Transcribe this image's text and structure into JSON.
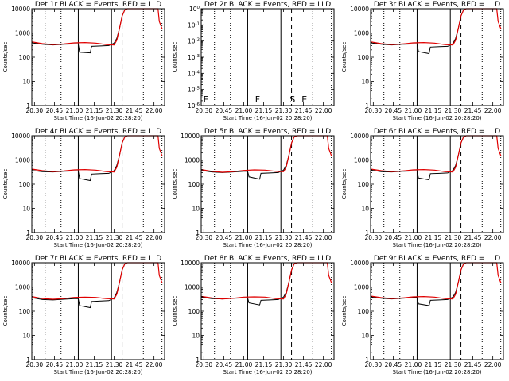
{
  "figure": {
    "rows": 3,
    "cols": 3
  },
  "colors": {
    "events": "#000000",
    "lld": "#e00000"
  },
  "chart_data": [
    {
      "type": "line",
      "title": "Det 1r BLACK = Events, RED = LLD",
      "xlabel": "Start Time (16-Jun-02 20:28:20)",
      "ylabel": "Counts/sec",
      "x_ticks": [
        "20:30",
        "20:45",
        "21:00",
        "21:15",
        "21:30",
        "21:45",
        "22:00"
      ],
      "yscale": "log",
      "ylim": [
        1,
        10000
      ],
      "y_ticks": [
        "1",
        "10",
        "100",
        "1000",
        "10000"
      ],
      "vlines_dotted": [
        "20:38",
        "20:50",
        "21:52",
        "22:06"
      ],
      "vlines_solid": [
        "21:03",
        "21:28"
      ],
      "vlines_dashed": [
        "21:36"
      ],
      "markers": [],
      "series": [
        {
          "name": "Events",
          "color": "#000000",
          "x": [
            "20:28",
            "20:36",
            "20:44",
            "20:52",
            "21:00",
            "21:03",
            "21:04",
            "21:12",
            "21:13",
            "21:20",
            "21:26",
            "21:30",
            "21:32",
            "21:34",
            "21:36",
            "21:38",
            "21:40"
          ],
          "y": [
            390,
            340,
            320,
            340,
            350,
            350,
            160,
            150,
            280,
            290,
            300,
            380,
            600,
            1500,
            5000,
            9000,
            10000
          ]
        },
        {
          "name": "LLD",
          "color": "#e00000",
          "x": [
            "20:28",
            "20:36",
            "20:44",
            "20:52",
            "21:00",
            "21:08",
            "21:16",
            "21:24",
            "21:30",
            "21:32",
            "21:34",
            "21:36",
            "21:38",
            "21:40",
            "22:03",
            "22:04",
            "22:06"
          ],
          "y": [
            430,
            360,
            330,
            350,
            390,
            400,
            380,
            330,
            320,
            500,
            1500,
            5000,
            9000,
            10000,
            10000,
            3000,
            1500
          ]
        }
      ]
    },
    {
      "type": "line",
      "title": "Det 2r BLACK = Events, RED = LLD",
      "xlabel": "Start Time (16-Jun-02 20:28:20)",
      "ylabel": "Counts/sec",
      "x_ticks": [
        "20:30",
        "20:45",
        "21:00",
        "21:15",
        "21:30",
        "21:45",
        "22:00"
      ],
      "yscale": "log",
      "ylim": [
        1e-06,
        1
      ],
      "y_tick_base": "10",
      "y_tick_exps": [
        "-6",
        "-5",
        "-4",
        "-3",
        "-2",
        "-1",
        "0"
      ],
      "vlines_dotted": [
        "20:38",
        "20:50",
        "21:52",
        "22:06"
      ],
      "vlines_solid": [
        "21:03",
        "21:28"
      ],
      "vlines_dashed": [
        "21:36"
      ],
      "markers": [
        {
          "x": "20:29",
          "label": "E"
        },
        {
          "x": "21:08",
          "label": "F"
        },
        {
          "x": "21:34",
          "label": "S"
        },
        {
          "x": "21:43",
          "label": "E"
        }
      ],
      "series": []
    },
    {
      "type": "line",
      "title": "Det 3r BLACK = Events, RED = LLD",
      "xlabel": "Start Time (16-Jun-02 20:28:20)",
      "ylabel": "Counts/sec",
      "x_ticks": [
        "20:30",
        "20:45",
        "21:00",
        "21:15",
        "21:30",
        "21:45",
        "22:00"
      ],
      "yscale": "log",
      "ylim": [
        1,
        10000
      ],
      "y_ticks": [
        "1",
        "10",
        "100",
        "1000",
        "10000"
      ],
      "vlines_dotted": [
        "20:38",
        "20:50",
        "21:52",
        "22:06"
      ],
      "vlines_solid": [
        "21:03",
        "21:28"
      ],
      "vlines_dashed": [
        "21:36"
      ],
      "markers": [],
      "series": [
        {
          "name": "Events",
          "color": "#000000",
          "x": [
            "20:28",
            "20:36",
            "20:44",
            "20:52",
            "21:00",
            "21:03",
            "21:04",
            "21:12",
            "21:13",
            "21:20",
            "21:26",
            "21:30",
            "21:32",
            "21:34",
            "21:36",
            "21:38",
            "21:40"
          ],
          "y": [
            390,
            340,
            320,
            340,
            350,
            350,
            170,
            140,
            260,
            270,
            280,
            360,
            600,
            1500,
            5000,
            9000,
            10000
          ]
        },
        {
          "name": "LLD",
          "color": "#e00000",
          "x": [
            "20:28",
            "20:36",
            "20:44",
            "20:52",
            "21:00",
            "21:08",
            "21:16",
            "21:24",
            "21:30",
            "21:32",
            "21:34",
            "21:36",
            "21:38",
            "21:40",
            "22:03",
            "22:04",
            "22:06"
          ],
          "y": [
            430,
            360,
            330,
            350,
            390,
            400,
            380,
            330,
            320,
            500,
            1500,
            5000,
            9000,
            10000,
            10000,
            3000,
            1500
          ]
        }
      ]
    },
    {
      "type": "line",
      "title": "Det 4r BLACK = Events, RED = LLD",
      "xlabel": "Start Time (16-Jun-02 20:28:20)",
      "ylabel": "Counts/sec",
      "x_ticks": [
        "20:30",
        "20:45",
        "21:00",
        "21:15",
        "21:30",
        "21:45",
        "22:00"
      ],
      "yscale": "log",
      "ylim": [
        1,
        10000
      ],
      "y_ticks": [
        "1",
        "10",
        "100",
        "1000",
        "10000"
      ],
      "vlines_dotted": [
        "20:38",
        "20:50",
        "21:52",
        "22:06"
      ],
      "vlines_solid": [
        "21:03",
        "21:28"
      ],
      "vlines_dashed": [
        "21:36"
      ],
      "markers": [],
      "series": [
        {
          "name": "Events",
          "color": "#000000",
          "x": [
            "20:28",
            "20:36",
            "20:44",
            "20:52",
            "21:00",
            "21:03",
            "21:04",
            "21:12",
            "21:13",
            "21:20",
            "21:26",
            "21:30",
            "21:32",
            "21:34",
            "21:36",
            "21:38",
            "21:40"
          ],
          "y": [
            370,
            330,
            320,
            340,
            350,
            350,
            170,
            140,
            260,
            270,
            280,
            360,
            600,
            1500,
            5000,
            9000,
            10000
          ]
        },
        {
          "name": "LLD",
          "color": "#e00000",
          "x": [
            "20:28",
            "20:36",
            "20:44",
            "20:52",
            "21:00",
            "21:08",
            "21:16",
            "21:24",
            "21:30",
            "21:32",
            "21:34",
            "21:36",
            "21:38",
            "21:40",
            "22:03",
            "22:04",
            "22:06"
          ],
          "y": [
            420,
            360,
            330,
            350,
            390,
            400,
            380,
            330,
            320,
            500,
            1500,
            5000,
            9000,
            10000,
            10000,
            3000,
            1500
          ]
        }
      ]
    },
    {
      "type": "line",
      "title": "Det 5r BLACK = Events, RED = LLD",
      "xlabel": "Start Time (16-Jun-02 20:28:20)",
      "ylabel": "Counts/sec",
      "x_ticks": [
        "20:30",
        "20:45",
        "21:00",
        "21:15",
        "21:30",
        "21:45",
        "22:00"
      ],
      "yscale": "log",
      "ylim": [
        1,
        10000
      ],
      "y_ticks": [
        "1",
        "10",
        "100",
        "1000",
        "10000"
      ],
      "vlines_dotted": [
        "20:38",
        "20:50",
        "21:52",
        "22:06"
      ],
      "vlines_solid": [
        "21:03",
        "21:28"
      ],
      "vlines_dashed": [
        "21:36"
      ],
      "markers": [],
      "series": [
        {
          "name": "Events",
          "color": "#000000",
          "x": [
            "20:28",
            "20:36",
            "20:44",
            "20:52",
            "21:00",
            "21:03",
            "21:04",
            "21:12",
            "21:13",
            "21:20",
            "21:26",
            "21:30",
            "21:32",
            "21:34",
            "21:36",
            "21:38",
            "21:40"
          ],
          "y": [
            370,
            320,
            300,
            320,
            340,
            340,
            200,
            160,
            280,
            290,
            300,
            380,
            600,
            1500,
            5000,
            9000,
            10000
          ]
        },
        {
          "name": "LLD",
          "color": "#e00000",
          "x": [
            "20:28",
            "20:36",
            "20:44",
            "20:52",
            "21:00",
            "21:08",
            "21:16",
            "21:24",
            "21:30",
            "21:32",
            "21:34",
            "21:36",
            "21:38",
            "21:40",
            "22:03",
            "22:04",
            "22:06"
          ],
          "y": [
            400,
            340,
            310,
            330,
            370,
            390,
            380,
            340,
            330,
            500,
            1500,
            5000,
            9000,
            10000,
            10000,
            3000,
            1500
          ]
        }
      ]
    },
    {
      "type": "line",
      "title": "Det 6r BLACK = Events, RED = LLD",
      "xlabel": "Start Time (16-Jun-02 20:28:20)",
      "ylabel": "Counts/sec",
      "x_ticks": [
        "20:30",
        "20:45",
        "21:00",
        "21:15",
        "21:30",
        "21:45",
        "22:00"
      ],
      "yscale": "log",
      "ylim": [
        1,
        10000
      ],
      "y_ticks": [
        "1",
        "10",
        "100",
        "1000",
        "10000"
      ],
      "vlines_dotted": [
        "20:38",
        "20:50",
        "21:52",
        "22:06"
      ],
      "vlines_solid": [
        "21:03",
        "21:28"
      ],
      "vlines_dashed": [
        "21:36"
      ],
      "markers": [],
      "series": [
        {
          "name": "Events",
          "color": "#000000",
          "x": [
            "20:28",
            "20:36",
            "20:44",
            "20:52",
            "21:00",
            "21:03",
            "21:04",
            "21:12",
            "21:13",
            "21:20",
            "21:26",
            "21:30",
            "21:32",
            "21:34",
            "21:36",
            "21:38",
            "21:40"
          ],
          "y": [
            380,
            330,
            320,
            340,
            350,
            350,
            180,
            150,
            270,
            280,
            290,
            370,
            600,
            1500,
            5000,
            9000,
            10000
          ]
        },
        {
          "name": "LLD",
          "color": "#e00000",
          "x": [
            "20:28",
            "20:36",
            "20:44",
            "20:52",
            "21:00",
            "21:08",
            "21:16",
            "21:24",
            "21:30",
            "21:32",
            "21:34",
            "21:36",
            "21:38",
            "21:40",
            "22:03",
            "22:04",
            "22:06"
          ],
          "y": [
            420,
            360,
            330,
            350,
            390,
            400,
            380,
            330,
            320,
            500,
            1500,
            5000,
            9000,
            10000,
            10000,
            3000,
            1500
          ]
        }
      ]
    },
    {
      "type": "line",
      "title": "Det 7r BLACK = Events, RED = LLD",
      "xlabel": "Start Time (16-Jun-02 20:28:20)",
      "ylabel": "Counts/sec",
      "x_ticks": [
        "20:30",
        "20:45",
        "21:00",
        "21:15",
        "21:30",
        "21:45",
        "22:00"
      ],
      "yscale": "log",
      "ylim": [
        1,
        10000
      ],
      "y_ticks": [
        "1",
        "10",
        "100",
        "1000",
        "10000"
      ],
      "vlines_dotted": [
        "20:38",
        "20:50",
        "21:52",
        "22:06"
      ],
      "vlines_solid": [
        "21:03",
        "21:28"
      ],
      "vlines_dashed": [
        "21:36"
      ],
      "markers": [],
      "series": [
        {
          "name": "Events",
          "color": "#000000",
          "x": [
            "20:28",
            "20:36",
            "20:44",
            "20:52",
            "21:00",
            "21:03",
            "21:04",
            "21:12",
            "21:13",
            "21:20",
            "21:26",
            "21:30",
            "21:32",
            "21:34",
            "21:36",
            "21:38",
            "21:40"
          ],
          "y": [
            360,
            300,
            290,
            310,
            330,
            330,
            170,
            140,
            250,
            260,
            270,
            350,
            600,
            1500,
            5000,
            9000,
            10000
          ]
        },
        {
          "name": "LLD",
          "color": "#e00000",
          "x": [
            "20:28",
            "20:36",
            "20:44",
            "20:52",
            "21:00",
            "21:08",
            "21:16",
            "21:24",
            "21:30",
            "21:32",
            "21:34",
            "21:36",
            "21:38",
            "21:40",
            "22:03",
            "22:04",
            "22:06"
          ],
          "y": [
            400,
            330,
            310,
            330,
            370,
            380,
            370,
            330,
            320,
            500,
            1500,
            5000,
            9000,
            10000,
            10000,
            3000,
            1500
          ]
        }
      ]
    },
    {
      "type": "line",
      "title": "Det 8r BLACK = Events, RED = LLD",
      "xlabel": "Start Time (16-Jun-02 20:28:20)",
      "ylabel": "Counts/sec",
      "x_ticks": [
        "20:30",
        "20:45",
        "21:00",
        "21:15",
        "21:30",
        "21:45",
        "22:00"
      ],
      "yscale": "log",
      "ylim": [
        1,
        10000
      ],
      "y_ticks": [
        "1",
        "10",
        "100",
        "1000",
        "10000"
      ],
      "vlines_dotted": [
        "20:38",
        "20:50",
        "21:52",
        "22:06"
      ],
      "vlines_solid": [
        "21:03",
        "21:28"
      ],
      "vlines_dashed": [
        "21:36"
      ],
      "markers": [],
      "series": [
        {
          "name": "Events",
          "color": "#000000",
          "x": [
            "20:28",
            "20:36",
            "20:44",
            "20:52",
            "21:00",
            "21:03",
            "21:04",
            "21:12",
            "21:13",
            "21:20",
            "21:26",
            "21:30",
            "21:32",
            "21:34",
            "21:36",
            "21:38",
            "21:40"
          ],
          "y": [
            380,
            330,
            320,
            340,
            350,
            350,
            220,
            180,
            280,
            290,
            300,
            380,
            600,
            1500,
            5000,
            9000,
            10000
          ]
        },
        {
          "name": "LLD",
          "color": "#e00000",
          "x": [
            "20:28",
            "20:36",
            "20:44",
            "20:52",
            "21:00",
            "21:08",
            "21:16",
            "21:24",
            "21:30",
            "21:32",
            "21:34",
            "21:36",
            "21:38",
            "21:40",
            "22:03",
            "22:04",
            "22:06"
          ],
          "y": [
            410,
            350,
            320,
            340,
            380,
            390,
            380,
            330,
            320,
            500,
            1500,
            5000,
            9000,
            10000,
            10000,
            3000,
            1500
          ]
        }
      ]
    },
    {
      "type": "line",
      "title": "Det 9r BLACK = Events, RED = LLD",
      "xlabel": "Start Time (16-Jun-02 20:28:20)",
      "ylabel": "Counts/sec",
      "x_ticks": [
        "20:30",
        "20:45",
        "21:00",
        "21:15",
        "21:30",
        "21:45",
        "22:00"
      ],
      "yscale": "log",
      "ylim": [
        1,
        10000
      ],
      "y_ticks": [
        "1",
        "10",
        "100",
        "1000",
        "10000"
      ],
      "vlines_dotted": [
        "20:38",
        "20:50",
        "21:52",
        "22:06"
      ],
      "vlines_solid": [
        "21:03",
        "21:28"
      ],
      "vlines_dashed": [
        "21:36"
      ],
      "markers": [],
      "series": [
        {
          "name": "Events",
          "color": "#000000",
          "x": [
            "20:28",
            "20:36",
            "20:44",
            "20:52",
            "21:00",
            "21:03",
            "21:04",
            "21:12",
            "21:13",
            "21:20",
            "21:26",
            "21:30",
            "21:32",
            "21:34",
            "21:36",
            "21:38",
            "21:40"
          ],
          "y": [
            380,
            340,
            320,
            340,
            360,
            360,
            200,
            170,
            280,
            290,
            300,
            380,
            600,
            1500,
            5000,
            9000,
            10000
          ]
        },
        {
          "name": "LLD",
          "color": "#e00000",
          "x": [
            "20:28",
            "20:36",
            "20:44",
            "20:52",
            "21:00",
            "21:08",
            "21:16",
            "21:24",
            "21:30",
            "21:32",
            "21:34",
            "21:36",
            "21:38",
            "21:40",
            "22:03",
            "22:04",
            "22:06"
          ],
          "y": [
            420,
            360,
            330,
            350,
            390,
            400,
            380,
            330,
            320,
            500,
            1500,
            5000,
            9000,
            10000,
            10000,
            3000,
            1500
          ]
        }
      ]
    }
  ]
}
